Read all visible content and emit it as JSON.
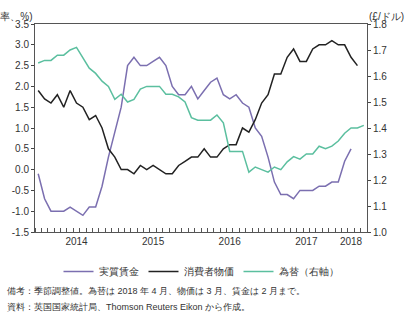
{
  "chart_data": {
    "type": "line",
    "ylabel": "(年率、%)",
    "y2label": "(£/ドル)",
    "categories": [
      null,
      null,
      null,
      null,
      null,
      null,
      "2014",
      null,
      null,
      null,
      null,
      null,
      null,
      null,
      null,
      null,
      null,
      null,
      "2015",
      null,
      null,
      null,
      null,
      null,
      null,
      null,
      null,
      null,
      null,
      null,
      "2016",
      null,
      null,
      null,
      null,
      null,
      null,
      null,
      null,
      null,
      null,
      null,
      "2017",
      null,
      null,
      null,
      null,
      null,
      null,
      "2018",
      null,
      null
    ],
    "series": [
      {
        "name": "実質賃金",
        "color": "#7b6fb0",
        "values": [
          -0.1,
          -0.7,
          -1.0,
          -1.0,
          -1.0,
          -0.9,
          -1.0,
          -1.1,
          -0.9,
          -0.9,
          -0.4,
          0.3,
          0.9,
          1.5,
          2.5,
          2.7,
          2.5,
          2.5,
          2.6,
          2.7,
          2.5,
          2.0,
          1.8,
          1.8,
          2.0,
          1.7,
          1.9,
          2.1,
          2.2,
          1.8,
          1.7,
          1.8,
          1.6,
          1.5,
          1.0,
          0.8,
          0.3,
          -0.3,
          -0.6,
          -0.6,
          -0.7,
          -0.5,
          -0.5,
          -0.5,
          -0.4,
          -0.4,
          -0.3,
          -0.3,
          0.2,
          0.5,
          null,
          null
        ]
      },
      {
        "name": "消費者物価",
        "color": "#222222",
        "values": [
          1.9,
          1.7,
          1.6,
          1.8,
          1.5,
          1.9,
          1.6,
          1.5,
          1.2,
          1.3,
          1.0,
          0.5,
          0.3,
          0.0,
          0.0,
          -0.1,
          0.1,
          0.0,
          0.1,
          0.0,
          -0.1,
          -0.1,
          0.1,
          0.2,
          0.3,
          0.3,
          0.5,
          0.3,
          0.3,
          0.5,
          0.6,
          0.6,
          1.0,
          0.9,
          1.2,
          1.6,
          1.8,
          2.3,
          2.3,
          2.7,
          2.9,
          2.6,
          2.6,
          2.9,
          3.0,
          3.0,
          3.1,
          3.0,
          3.0,
          2.7,
          2.5,
          null
        ]
      },
      {
        "name": "為替（右軸）",
        "color": "#5bbf9f",
        "axis": "y2",
        "values": [
          1.65,
          1.66,
          1.66,
          1.68,
          1.68,
          1.7,
          1.71,
          1.67,
          1.63,
          1.61,
          1.58,
          1.56,
          1.51,
          1.53,
          1.5,
          1.51,
          1.55,
          1.56,
          1.56,
          1.56,
          1.53,
          1.53,
          1.52,
          1.5,
          1.44,
          1.43,
          1.43,
          1.43,
          1.45,
          1.42,
          1.31,
          1.31,
          1.31,
          1.23,
          1.25,
          1.24,
          1.23,
          1.25,
          1.24,
          1.27,
          1.29,
          1.28,
          1.3,
          1.3,
          1.33,
          1.32,
          1.33,
          1.35,
          1.38,
          1.4,
          1.4,
          1.41
        ]
      }
    ],
    "ylim": [
      -1.5,
      3.5
    ],
    "yticks": [
      {
        "value": -1.5,
        "label": "-1.5"
      },
      {
        "value": -1,
        "label": "-1.0"
      },
      -0.5,
      {
        "value": 0,
        "label": "0.0"
      },
      0.5,
      {
        "value": 1,
        "label": "1.0"
      },
      1.5,
      {
        "value": 2,
        "label": "2.0"
      },
      2.5,
      {
        "value": 3,
        "label": "3.0"
      },
      3.5
    ],
    "y2lim": [
      1.0,
      1.8
    ],
    "y2ticks": [
      {
        "value": 1,
        "label": "1.0"
      },
      1.1,
      1.2,
      1.3,
      1.4,
      1.5,
      1.6,
      1.7,
      1.8
    ],
    "grid": false,
    "legend": "bottom",
    "notes": [
      "備考：季節調整値。為替は 2018 年 4 月、物価は 3 月、賃金は 2 月まで。",
      "資料：英国国家統計局、Thomson Reuters Eikon から作成。"
    ]
  }
}
